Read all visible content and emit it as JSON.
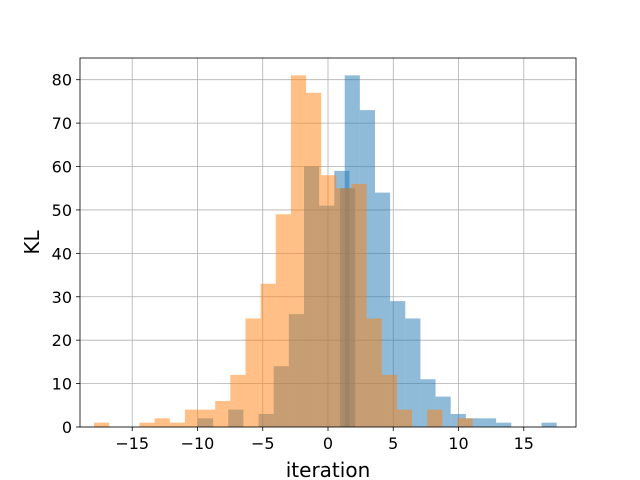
{
  "chart_data": {
    "type": "histogram",
    "xlabel": "iteration",
    "ylabel": "KL",
    "xlim": [
      -19.0,
      19.0
    ],
    "ylim": [
      0,
      85
    ],
    "xticks": [
      -15,
      -10,
      -5,
      0,
      5,
      10,
      15
    ],
    "xtick_labels": [
      "−15",
      "−10",
      "−5",
      "0",
      "5",
      "10",
      "15"
    ],
    "yticks": [
      0,
      10,
      20,
      30,
      40,
      50,
      60,
      70,
      80
    ],
    "ytick_labels": [
      "0",
      "10",
      "20",
      "30",
      "40",
      "50",
      "60",
      "70",
      "80"
    ],
    "grid": true,
    "series": [
      {
        "color": "#1f77b4",
        "alpha": 0.5,
        "bin_width": 1.16,
        "bins": [
          {
            "x0": -9.96,
            "value": 2
          },
          {
            "x0": -8.8,
            "value": 0
          },
          {
            "x0": -7.64,
            "value": 4
          },
          {
            "x0": -6.48,
            "value": 0
          },
          {
            "x0": -5.32,
            "value": 3
          },
          {
            "x0": -4.16,
            "value": 14
          },
          {
            "x0": -3.0,
            "value": 26
          },
          {
            "x0": -1.84,
            "value": 60
          },
          {
            "x0": -0.68,
            "value": 51
          },
          {
            "x0": 0.48,
            "value": 59
          },
          {
            "x0": 0.92,
            "value": 55
          },
          {
            "x0": 1.28,
            "value": 81
          },
          {
            "x0": 2.44,
            "value": 73
          },
          {
            "x0": 3.6,
            "value": 54
          },
          {
            "x0": 4.76,
            "value": 29
          },
          {
            "x0": 5.92,
            "value": 25
          },
          {
            "x0": 7.08,
            "value": 11
          },
          {
            "x0": 8.24,
            "value": 7
          },
          {
            "x0": 9.4,
            "value": 3
          },
          {
            "x0": 10.56,
            "value": 2
          },
          {
            "x0": 11.72,
            "value": 2
          },
          {
            "x0": 12.88,
            "value": 1
          },
          {
            "x0": 14.04,
            "value": 0
          },
          {
            "x0": 15.2,
            "value": 0
          },
          {
            "x0": 16.36,
            "value": 1
          }
        ]
      },
      {
        "color": "#ff7f0e",
        "alpha": 0.5,
        "bin_width": 1.16,
        "bins": [
          {
            "x0": -17.92,
            "value": 1
          },
          {
            "x0": -16.76,
            "value": 0
          },
          {
            "x0": -15.6,
            "value": 0
          },
          {
            "x0": -14.44,
            "value": 1
          },
          {
            "x0": -13.28,
            "value": 2
          },
          {
            "x0": -12.12,
            "value": 1
          },
          {
            "x0": -10.96,
            "value": 4
          },
          {
            "x0": -9.8,
            "value": 4
          },
          {
            "x0": -8.64,
            "value": 6
          },
          {
            "x0": -7.48,
            "value": 12
          },
          {
            "x0": -6.32,
            "value": 25
          },
          {
            "x0": -5.16,
            "value": 33
          },
          {
            "x0": -4.0,
            "value": 49
          },
          {
            "x0": -2.84,
            "value": 81
          },
          {
            "x0": -1.68,
            "value": 77
          },
          {
            "x0": -0.52,
            "value": 58
          },
          {
            "x0": 0.64,
            "value": 55
          },
          {
            "x0": 1.8,
            "value": 56
          },
          {
            "x0": 2.96,
            "value": 25
          },
          {
            "x0": 4.12,
            "value": 12
          },
          {
            "x0": 5.28,
            "value": 4
          },
          {
            "x0": 6.44,
            "value": 0
          },
          {
            "x0": 7.6,
            "value": 4
          },
          {
            "x0": 8.76,
            "value": 0
          },
          {
            "x0": 9.92,
            "value": 2
          }
        ]
      }
    ]
  }
}
